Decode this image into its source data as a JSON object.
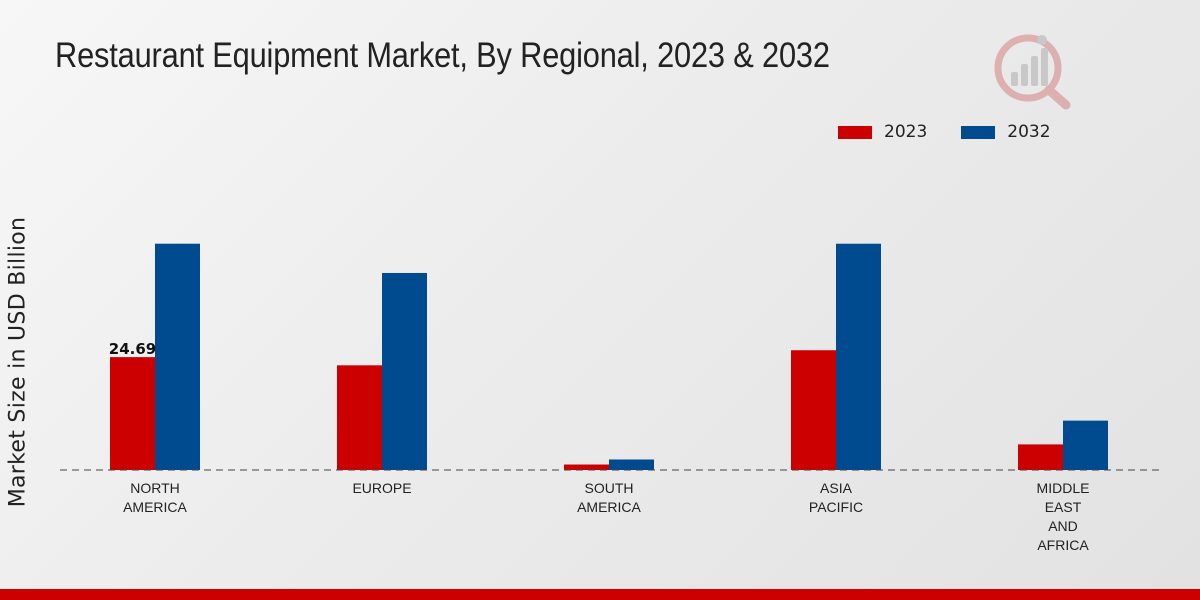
{
  "colors": {
    "series_2023": "#cc0000",
    "series_2032": "#004a8f",
    "bottom_bar": "#cc0000"
  },
  "chart_data": {
    "type": "bar",
    "title": "Restaurant Equipment Market, By Regional, 2023 & 2032",
    "xlabel": "",
    "ylabel": "Market Size in USD Billion",
    "categories": [
      [
        "NORTH",
        "AMERICA"
      ],
      [
        "EUROPE"
      ],
      [
        "SOUTH",
        "AMERICA"
      ],
      [
        "ASIA",
        "PACIFIC"
      ],
      [
        "MIDDLE",
        "EAST",
        "AND",
        "AFRICA"
      ]
    ],
    "series": [
      {
        "name": "2023",
        "values": [
          24.69,
          22.9,
          1.2,
          26.2,
          5.6
        ]
      },
      {
        "name": "2032",
        "values": [
          49.5,
          43.1,
          2.3,
          49.5,
          10.8
        ]
      }
    ],
    "data_labels": [
      {
        "series": 0,
        "index": 0,
        "text": "24.69"
      }
    ],
    "ylim": [
      0,
      70
    ],
    "legend_position": "top-right",
    "grid": false
  }
}
